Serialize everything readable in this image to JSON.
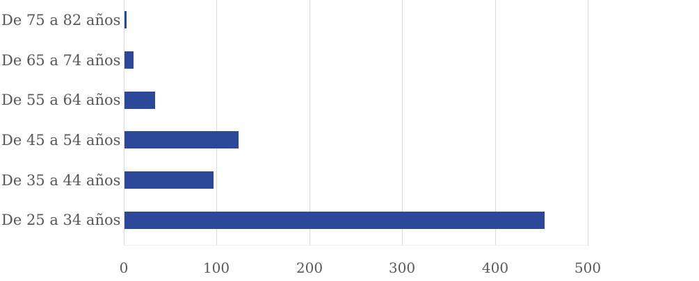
{
  "chart_data": {
    "type": "bar",
    "orientation": "horizontal",
    "title": "",
    "xlabel": "",
    "ylabel": "",
    "categories": [
      "De 75 a 82 años",
      "De 65 a 74 años",
      "De 55 a 64 años",
      "De 45 a 54 años",
      "De 35 a 44 años",
      "De 25 a 34 años"
    ],
    "values": [
      2,
      10,
      33,
      123,
      96,
      453
    ],
    "x_ticks": [
      "0",
      "100",
      "200",
      "300",
      "400",
      "500"
    ],
    "xlim": [
      0,
      500
    ],
    "grid": "vertical-only",
    "legend": "none",
    "colors": {
      "bar": "#2b4899",
      "gridline": "#d9d9d9",
      "category_label": "#575757",
      "tick_label": "#595959",
      "background": "#ffffff"
    }
  }
}
